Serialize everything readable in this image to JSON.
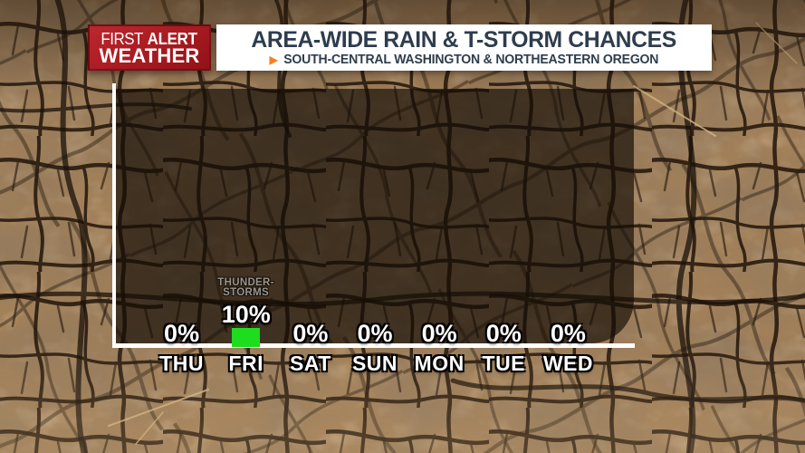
{
  "brand": {
    "line1_light": "FIRST",
    "line1_bold": "ALERT",
    "line2": "WEATHER",
    "bg_color": "#ab1d23"
  },
  "header": {
    "title": "AREA-WIDE RAIN & T-STORM CHANCES",
    "subtitle": "SOUTH-CENTRAL WASHINGTON & NORTHEASTERN OREGON",
    "arrow_icon": "▶",
    "title_color": "#2e3d4d",
    "accent_color": "#f58220"
  },
  "chart_data": {
    "type": "bar",
    "title": "AREA-WIDE RAIN & T-STORM CHANCES",
    "categories": [
      "THU",
      "FRI",
      "SAT",
      "SUN",
      "MON",
      "TUE",
      "WED"
    ],
    "values": [
      0,
      10,
      0,
      0,
      0,
      0,
      0
    ],
    "value_labels": [
      "0%",
      "10%",
      "0%",
      "0%",
      "0%",
      "0%",
      "0%"
    ],
    "ylim": [
      0,
      100
    ],
    "grid": "off",
    "bar_color": "#1edc1e",
    "axis_color": "#ffffff",
    "annotations": [
      {
        "target": "FRI",
        "line1": "THUNDER-",
        "line2": "STORMS"
      }
    ]
  }
}
